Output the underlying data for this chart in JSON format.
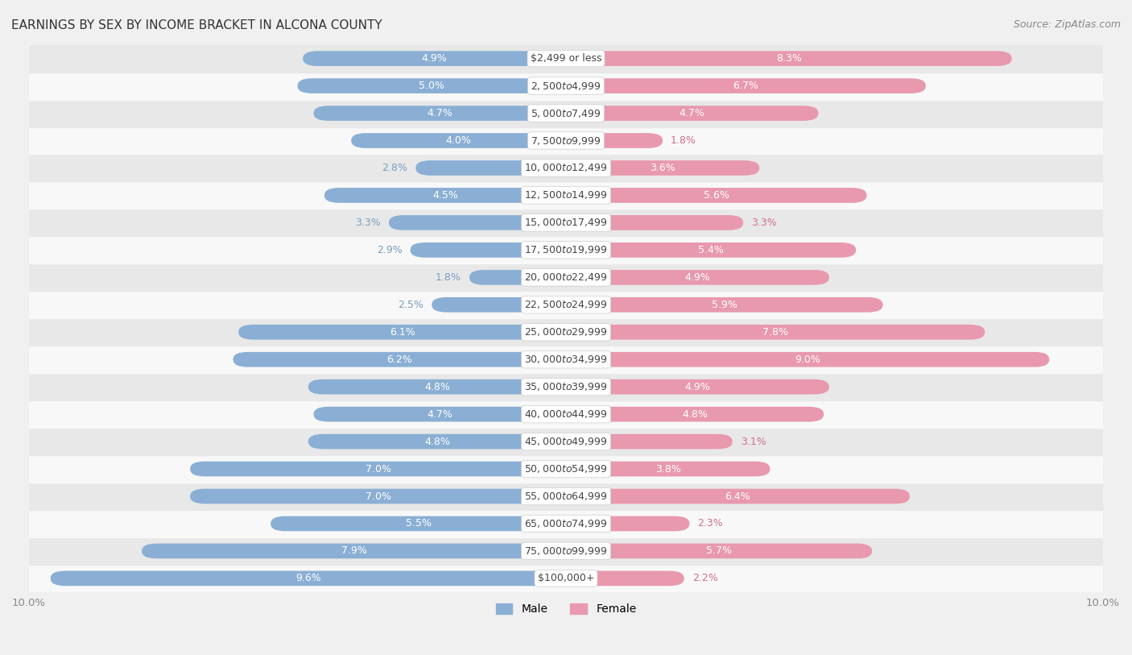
{
  "title": "EARNINGS BY SEX BY INCOME BRACKET IN ALCONA COUNTY",
  "source": "Source: ZipAtlas.com",
  "categories": [
    "$2,499 or less",
    "$2,500 to $4,999",
    "$5,000 to $7,499",
    "$7,500 to $9,999",
    "$10,000 to $12,499",
    "$12,500 to $14,999",
    "$15,000 to $17,499",
    "$17,500 to $19,999",
    "$20,000 to $22,499",
    "$22,500 to $24,999",
    "$25,000 to $29,999",
    "$30,000 to $34,999",
    "$35,000 to $39,999",
    "$40,000 to $44,999",
    "$45,000 to $49,999",
    "$50,000 to $54,999",
    "$55,000 to $64,999",
    "$65,000 to $74,999",
    "$75,000 to $99,999",
    "$100,000+"
  ],
  "male": [
    4.9,
    5.0,
    4.7,
    4.0,
    2.8,
    4.5,
    3.3,
    2.9,
    1.8,
    2.5,
    6.1,
    6.2,
    4.8,
    4.7,
    4.8,
    7.0,
    7.0,
    5.5,
    7.9,
    9.6
  ],
  "female": [
    8.3,
    6.7,
    4.7,
    1.8,
    3.6,
    5.6,
    3.3,
    5.4,
    4.9,
    5.9,
    7.8,
    9.0,
    4.9,
    4.8,
    3.1,
    3.8,
    6.4,
    2.3,
    5.7,
    2.2
  ],
  "male_color": "#8BAFD4",
  "female_color": "#E899AE",
  "male_label_color_inside": "#FFFFFF",
  "female_label_color_inside": "#FFFFFF",
  "male_label_color_outside": "#7A9EC0",
  "female_label_color_outside": "#D07090",
  "bg_color": "#F0F0F0",
  "row_even_color": "#E8E8E8",
  "row_odd_color": "#F8F8F8",
  "xlim": 10.0,
  "bar_height": 0.55,
  "label_fontsize": 9.0,
  "cat_fontsize": 9.0,
  "title_fontsize": 11,
  "source_fontsize": 9,
  "inside_threshold_male": 3.5,
  "inside_threshold_female": 3.5
}
